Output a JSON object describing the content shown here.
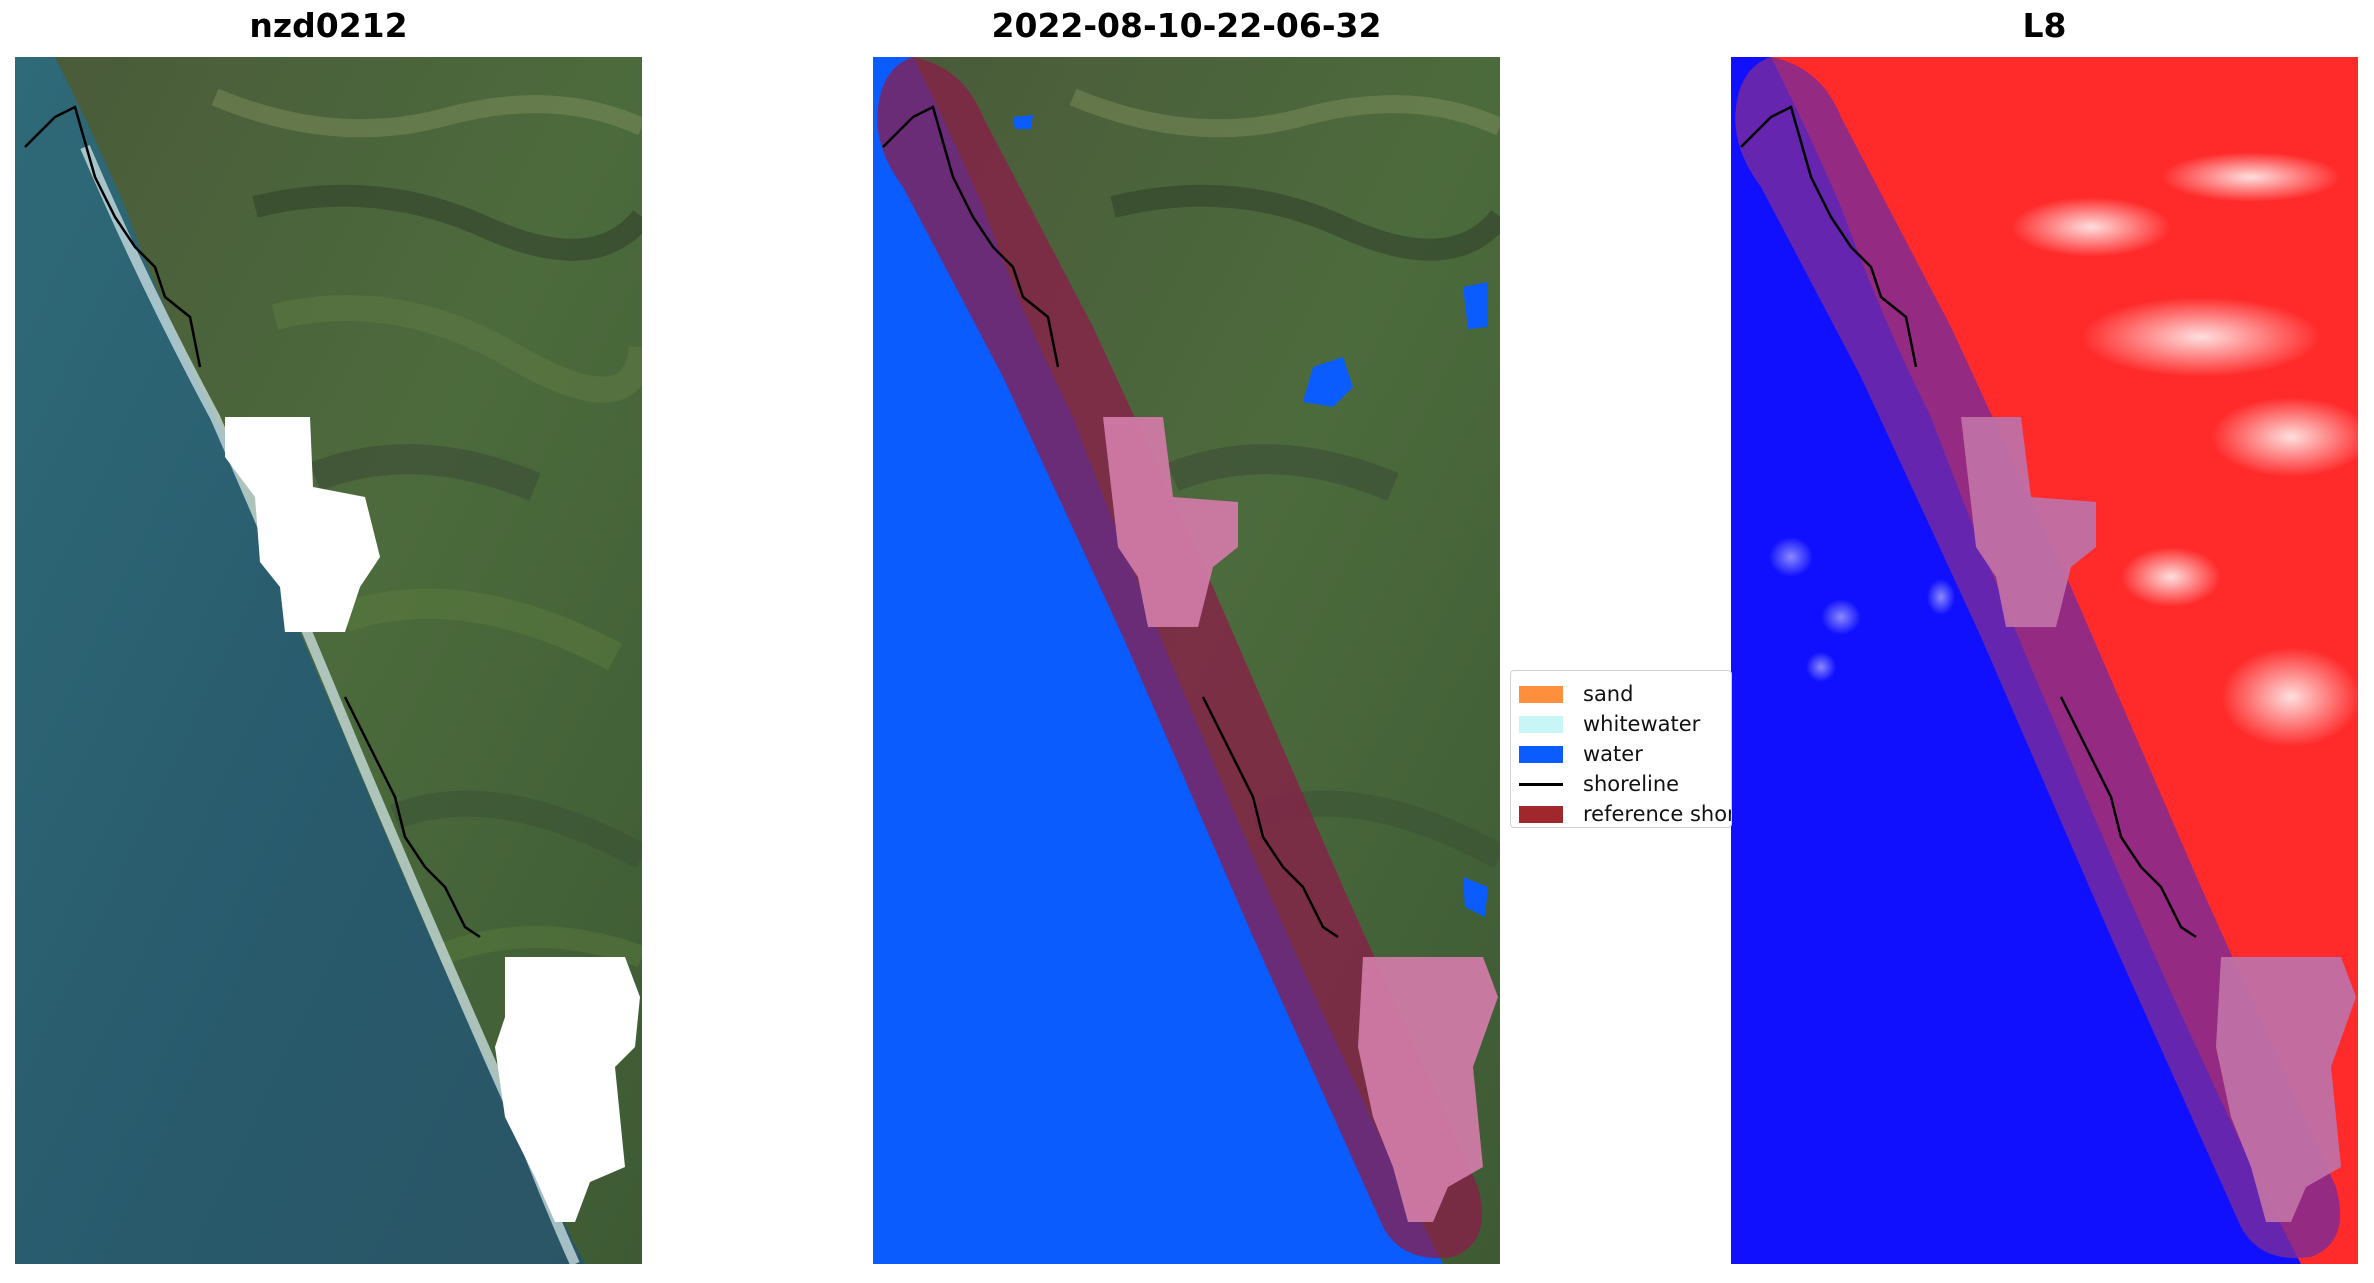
{
  "panels": [
    {
      "title": "nzd0212"
    },
    {
      "title": "2022-08-10-22-06-32"
    },
    {
      "title": "L8"
    }
  ],
  "legend": {
    "items": [
      {
        "label": "sand",
        "color": "#ff8f3c"
      },
      {
        "label": "whitewater",
        "color": "#c8f6f6"
      },
      {
        "label": "water",
        "color": "#0a5cff"
      },
      {
        "label": "shoreline",
        "color": "#000000"
      },
      {
        "label": "reference shoreline buffer",
        "color": "#a0282c"
      }
    ]
  },
  "colors": {
    "ocean_rgb": "#2c5e70",
    "land_rgb": "#4d6b3f",
    "cloud_mask": "#ffffff",
    "water_class": "#0a5cff",
    "buffer_overlay": "#8b1c4a",
    "index_land": "#ff2020",
    "index_water": "#1010ff"
  }
}
